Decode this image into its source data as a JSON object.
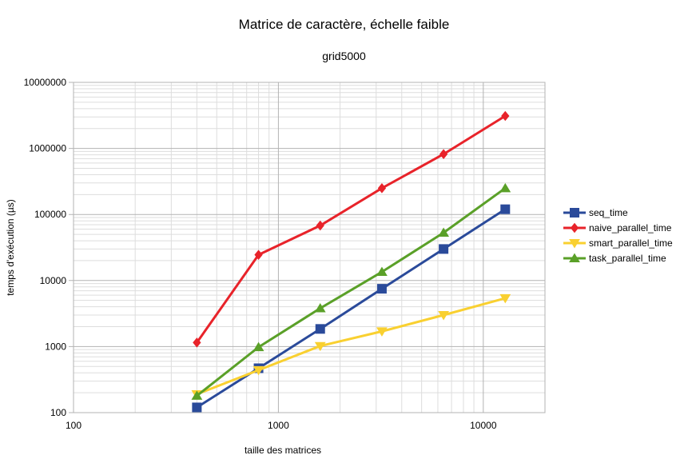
{
  "chart_data": {
    "type": "line",
    "title": "Matrice de caractère, échelle faible",
    "subtitle": "grid5000",
    "xlabel": "taille des matrices",
    "ylabel": "temps d'exécution (µs)",
    "xscale": "log",
    "yscale": "log",
    "xlim": [
      100,
      20000
    ],
    "ylim": [
      100,
      10000000
    ],
    "x_tick_labels": [
      "100",
      "1000",
      "10000"
    ],
    "y_tick_labels": [
      "100",
      "1000",
      "10000",
      "100000",
      "1000000",
      "10000000"
    ],
    "grid": true,
    "legend_position": "right",
    "x": [
      400,
      800,
      1600,
      3200,
      6400,
      12800
    ],
    "series": [
      {
        "name": "seq_time",
        "color": "#2a4a9a",
        "marker": "square",
        "values": [
          120,
          470,
          1850,
          7500,
          30000,
          120000
        ]
      },
      {
        "name": "naive_parallel_time",
        "color": "#e8232a",
        "marker": "diamond",
        "values": [
          1150,
          24500,
          68000,
          250000,
          820000,
          3100000
        ]
      },
      {
        "name": "smart_parallel_time",
        "color": "#f9d030",
        "marker": "triangle-down",
        "values": [
          190,
          440,
          1020,
          1700,
          3000,
          5400
        ]
      },
      {
        "name": "task_parallel_time",
        "color": "#5aa028",
        "marker": "triangle-up",
        "values": [
          180,
          980,
          3800,
          13500,
          53000,
          250000
        ]
      }
    ]
  }
}
